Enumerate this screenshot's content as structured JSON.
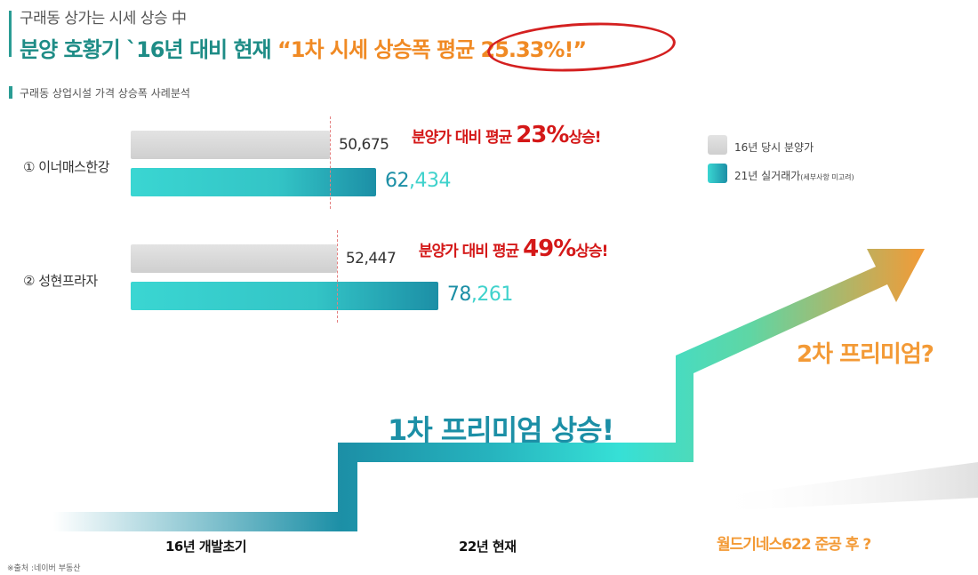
{
  "header": {
    "subtitle": "구래동 상가는 시세 상승 中",
    "headline_main": "분양 호황기 `16년 대비 현재 ",
    "headline_highlight": "“1차 시세 상승폭 평균 25.33%!”"
  },
  "section_title": "구래동 상업시설 가격 상승폭 사례분석",
  "legend": {
    "items": [
      {
        "label": "16년 당시 분양가",
        "note": "",
        "color": "#d3d3d3"
      },
      {
        "label": "21년 실거래가",
        "note": "(세부사항 미고려)",
        "color": "#33c4c6"
      }
    ]
  },
  "chart_data": {
    "type": "bar",
    "categories": [
      "① 이너매스한강",
      "② 성현프라자"
    ],
    "series": [
      {
        "name": "16년 당시 분양가",
        "values": [
          50675,
          52447
        ],
        "display": [
          "50,675",
          "52,447"
        ]
      },
      {
        "name": "21년 실거래가",
        "values": [
          62434,
          78261
        ],
        "display_head": [
          "62",
          "78"
        ],
        "display_tail": [
          ",434",
          ",261"
        ]
      }
    ],
    "annotations": [
      {
        "prefix": "분양가 대비 평균 ",
        "pct": "23%",
        "suffix": "상승!"
      },
      {
        "prefix": "분양가 대비 평균 ",
        "pct": "49%",
        "suffix": "상승!"
      }
    ],
    "xlim": [
      0,
      110000
    ],
    "orientation": "horizontal",
    "legend_position": "right",
    "grid": false
  },
  "steps": {
    "stage1": "16년 개발초기",
    "stage2": "22년 현재",
    "stage3": "월드기네스622 준공 후 ?",
    "premium1": "1차 프리미엄 상승!",
    "premium2": "2차 프리미엄?"
  },
  "source": "※출처 :네이버 부동산",
  "colors": {
    "teal": "#1e8c86",
    "orange": "#f08a24",
    "red": "#d41818",
    "cyan": "#33c4c6"
  }
}
